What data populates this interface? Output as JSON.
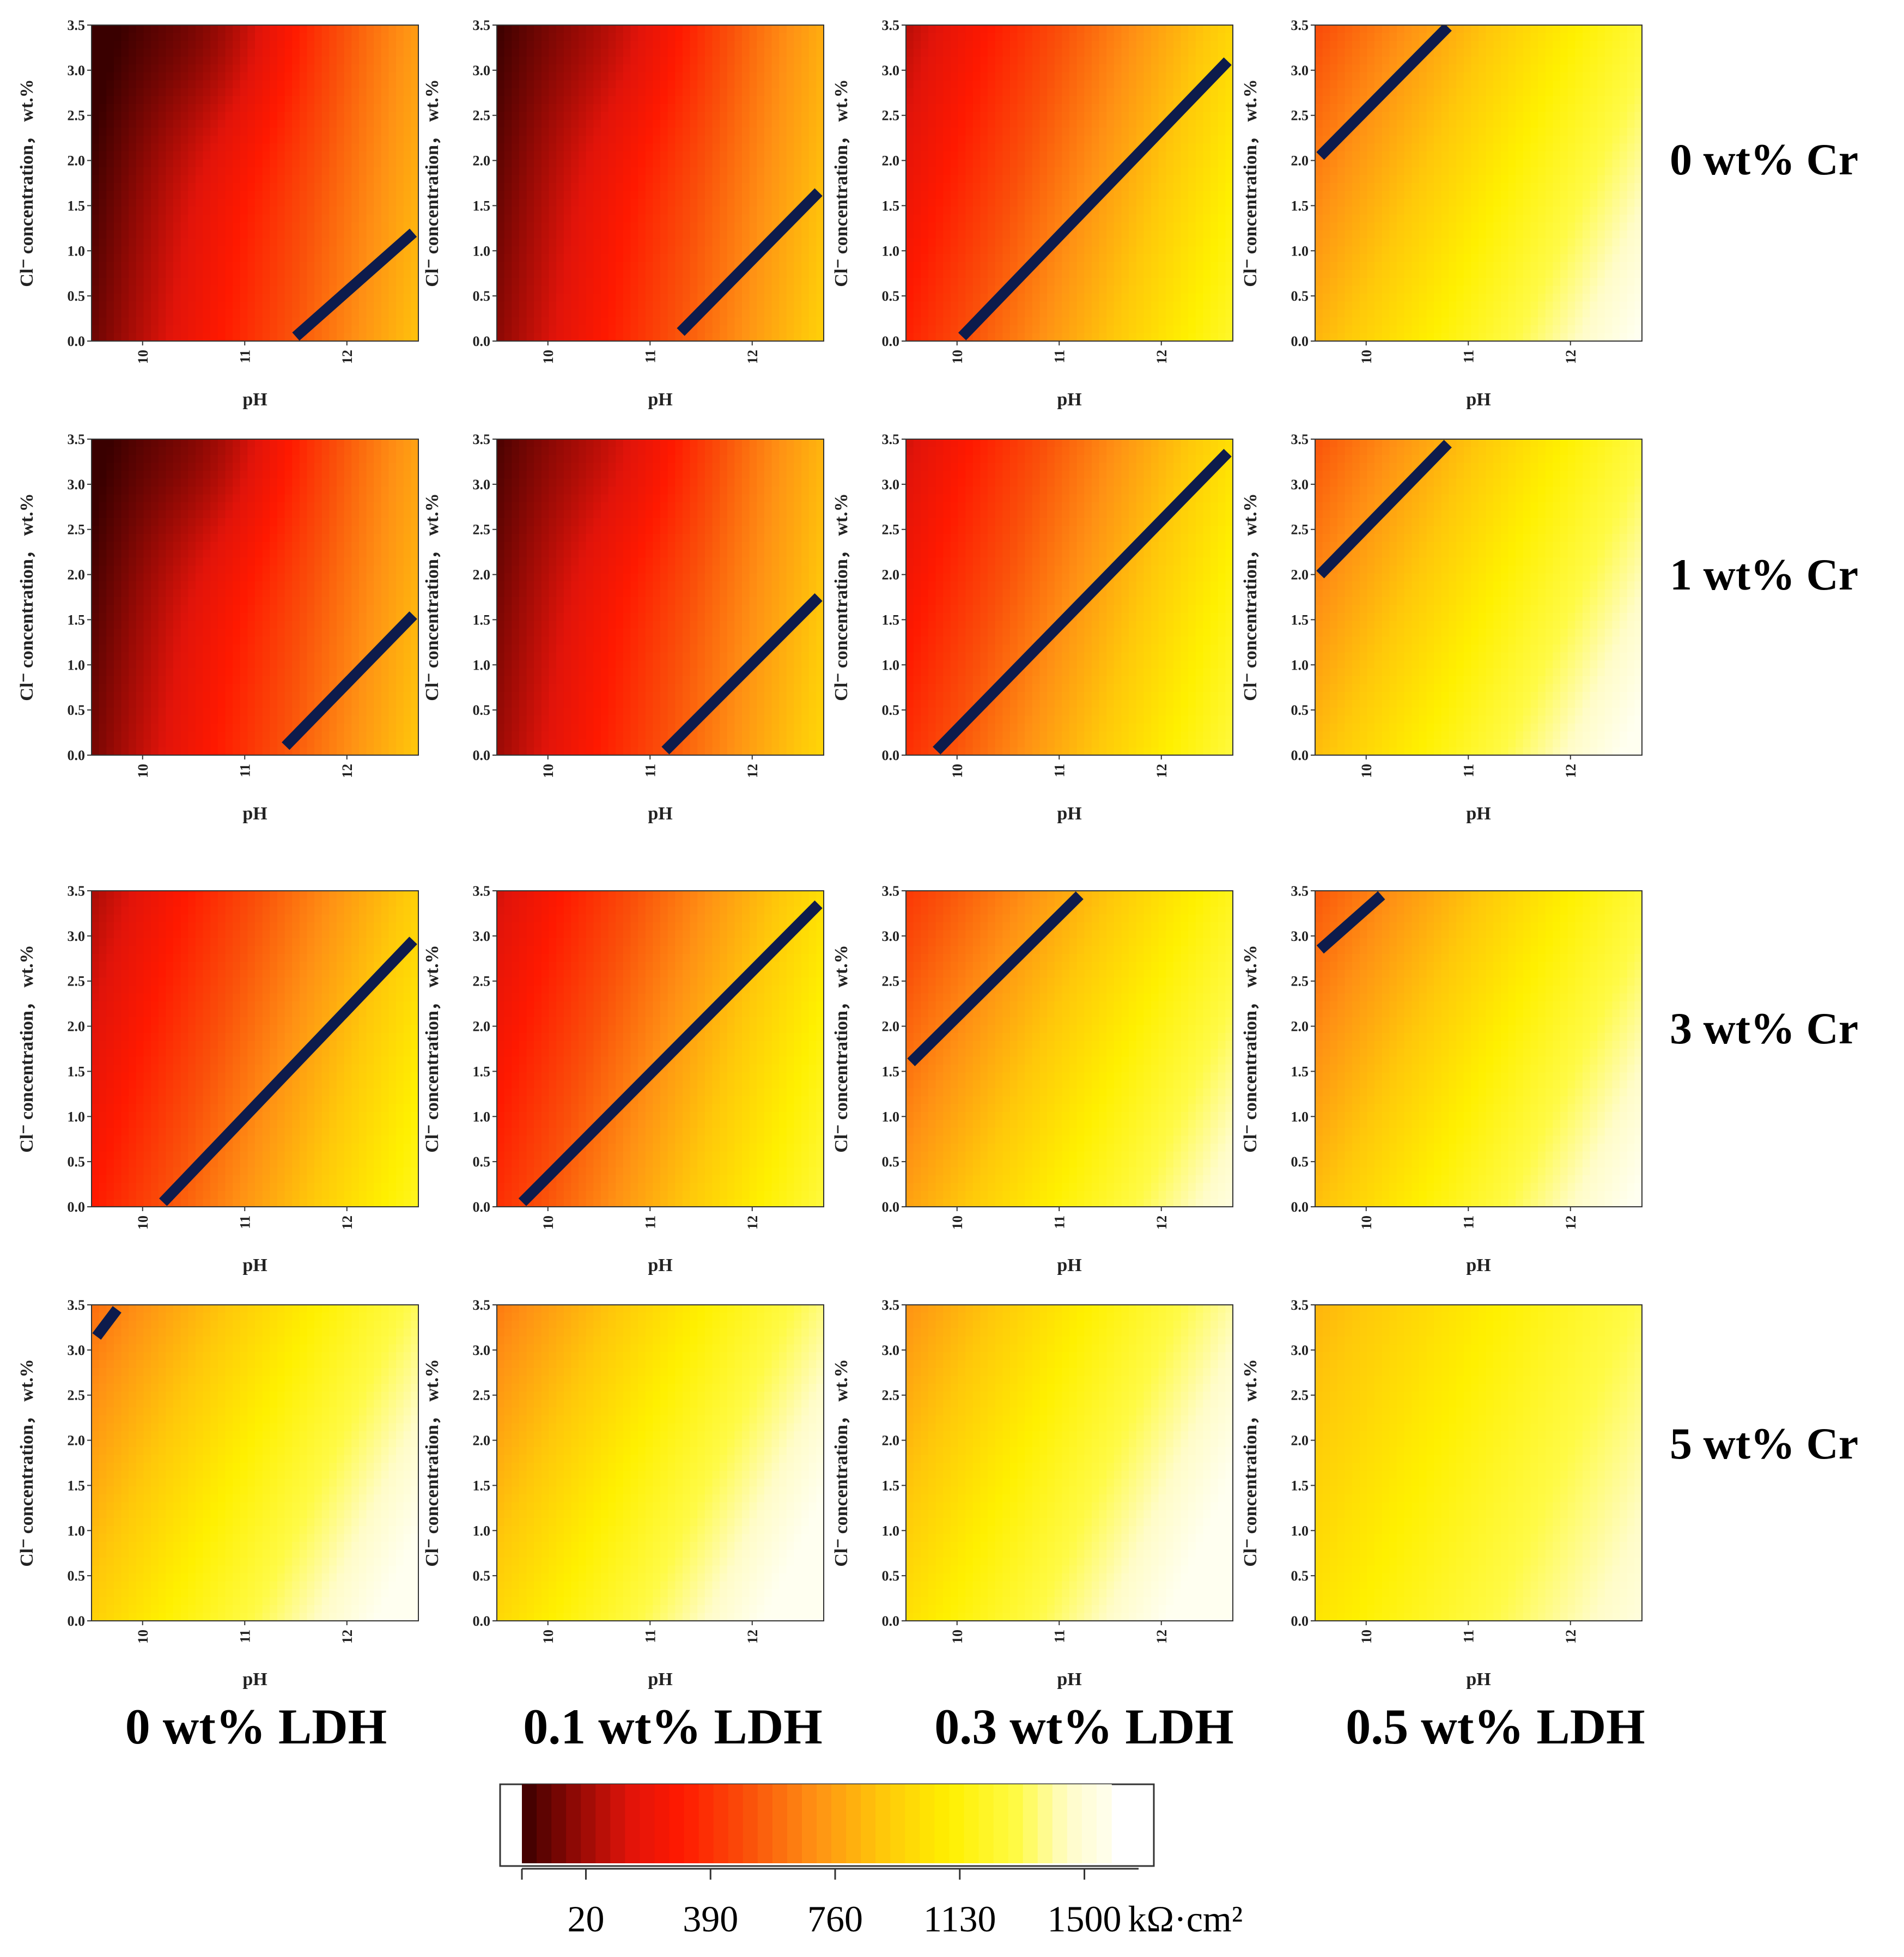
{
  "chart_data": {
    "type": "heatmap",
    "layout": "4x4 grid of contour plots",
    "xlabel": "pH",
    "ylabel": "Cl⁻ concentration， wt.%",
    "x_ticks": [
      "10",
      "11",
      "12"
    ],
    "y_ticks": [
      "0.0",
      "0.5",
      "1.0",
      "1.5",
      "2.0",
      "2.5",
      "3.0",
      "3.5"
    ],
    "xlim": [
      9.5,
      12.7
    ],
    "ylim": [
      0,
      3.5
    ],
    "row_labels": [
      "0 wt% Cr",
      "1 wt% Cr",
      "3 wt% Cr",
      "5 wt% Cr"
    ],
    "column_labels": [
      "0 wt% LDH",
      "0.1 wt% LDH",
      "0.3 wt% LDH",
      "0.5 wt% LDH"
    ],
    "colorbar": {
      "ticks": [
        "20",
        "390",
        "760",
        "1130",
        "1500"
      ],
      "tick_values": [
        20,
        390,
        760,
        1130,
        1500
      ],
      "unit": "kΩ·cm²",
      "colormap": "heat (dark red → red → orange → yellow → white)",
      "range": [
        -170,
        1580
      ]
    },
    "boundary_line_color": "#0d1b4c",
    "panels": [
      {
        "row": 0,
        "col": 0,
        "base": -80,
        "sx": 300,
        "sy": -40,
        "peak": -150,
        "line": [
          [
            11.5,
            0.05
          ],
          [
            12.65,
            1.2
          ]
        ]
      },
      {
        "row": 0,
        "col": 1,
        "base": -20,
        "sx": 300,
        "sy": -40,
        "peak": -110,
        "line": [
          [
            11.3,
            0.1
          ],
          [
            12.65,
            1.65
          ]
        ]
      },
      {
        "row": 0,
        "col": 2,
        "base": 330,
        "sx": 280,
        "sy": -75,
        "peak": 0,
        "line": [
          [
            10.05,
            0.05
          ],
          [
            12.65,
            3.1
          ]
        ]
      },
      {
        "row": 0,
        "col": 3,
        "base": 830,
        "sx": 240,
        "sy": -100,
        "peak": 0,
        "line": [
          [
            9.55,
            2.05
          ],
          [
            10.8,
            3.48
          ]
        ]
      },
      {
        "row": 1,
        "col": 0,
        "base": -60,
        "sx": 300,
        "sy": -40,
        "peak": -150,
        "line": [
          [
            11.4,
            0.1
          ],
          [
            12.65,
            1.55
          ]
        ]
      },
      {
        "row": 1,
        "col": 1,
        "base": 10,
        "sx": 300,
        "sy": -40,
        "peak": -110,
        "line": [
          [
            11.15,
            0.05
          ],
          [
            12.65,
            1.75
          ]
        ]
      },
      {
        "row": 1,
        "col": 2,
        "base": 380,
        "sx": 280,
        "sy": -75,
        "peak": 0,
        "line": [
          [
            9.8,
            0.05
          ],
          [
            12.65,
            3.35
          ]
        ]
      },
      {
        "row": 1,
        "col": 3,
        "base": 860,
        "sx": 240,
        "sy": -100,
        "peak": 0,
        "line": [
          [
            9.55,
            2.0
          ],
          [
            10.8,
            3.45
          ]
        ]
      },
      {
        "row": 2,
        "col": 0,
        "base": 300,
        "sx": 280,
        "sy": -75,
        "peak": 0,
        "line": [
          [
            10.2,
            0.05
          ],
          [
            12.65,
            2.95
          ]
        ]
      },
      {
        "row": 2,
        "col": 1,
        "base": 380,
        "sx": 280,
        "sy": -75,
        "peak": 0,
        "line": [
          [
            9.75,
            0.05
          ],
          [
            12.65,
            3.35
          ]
        ]
      },
      {
        "row": 2,
        "col": 2,
        "base": 760,
        "sx": 240,
        "sy": -100,
        "peak": 0,
        "line": [
          [
            9.55,
            1.6
          ],
          [
            11.2,
            3.45
          ]
        ]
      },
      {
        "row": 2,
        "col": 3,
        "base": 870,
        "sx": 230,
        "sy": -100,
        "peak": 0,
        "line": [
          [
            9.55,
            2.85
          ],
          [
            10.15,
            3.45
          ]
        ]
      },
      {
        "row": 3,
        "col": 0,
        "base": 940,
        "sx": 230,
        "sy": -100,
        "peak": 0,
        "line": [
          [
            9.55,
            3.15
          ],
          [
            9.75,
            3.45
          ]
        ]
      },
      {
        "row": 3,
        "col": 1,
        "base": 980,
        "sx": 230,
        "sy": -100,
        "peak": 0,
        "line": null
      },
      {
        "row": 3,
        "col": 2,
        "base": 1020,
        "sx": 220,
        "sy": -90,
        "peak": 0,
        "line": null
      },
      {
        "row": 3,
        "col": 3,
        "base": 1040,
        "sx": 150,
        "sy": -60,
        "peak": 0,
        "line": null
      }
    ]
  }
}
